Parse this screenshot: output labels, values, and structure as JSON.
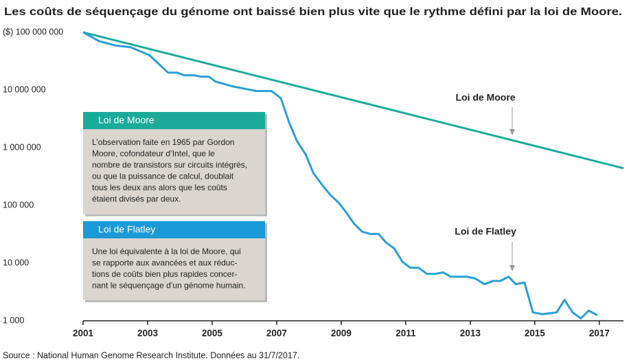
{
  "chart_data": {
    "type": "line",
    "title": "Les coûts de séquençage du génome ont baissé bien plus vite que le rythme défini par la loi de Moore.",
    "log_scale": true,
    "xlim": [
      2001,
      2017.75
    ],
    "xticks": [
      2001,
      2003,
      2005,
      2007,
      2009,
      2011,
      2013,
      2015,
      2017
    ],
    "ylim": [
      1000,
      100000000
    ],
    "yticks": [
      {
        "value": 1000,
        "label": "1 000"
      },
      {
        "value": 10000,
        "label": "10 000"
      },
      {
        "value": 100000,
        "label": "100 000"
      },
      {
        "value": 1000000,
        "label": "1 000 000"
      },
      {
        "value": 10000000,
        "label": "10 000 000"
      },
      {
        "value": 100000000,
        "label": "($) 100 000 000"
      }
    ],
    "series": [
      {
        "name": "Loi de Moore",
        "color": "#1aab9b",
        "x": [
          2001,
          2017.75
        ],
        "values": [
          100000000,
          440000
        ]
      },
      {
        "name": "Loi de Flatley",
        "color": "#2a9fd8",
        "x": [
          2001,
          2001.5,
          2002,
          2002.47,
          2003.06,
          2003.63,
          2003.9,
          2004.14,
          2004.45,
          2004.65,
          2004.9,
          2005.1,
          2005.65,
          2006.37,
          2006.84,
          2007.13,
          2007.4,
          2007.63,
          2007.9,
          2008.14,
          2008.4,
          2008.67,
          2008.93,
          2009.15,
          2009.4,
          2009.65,
          2009.9,
          2010.16,
          2010.38,
          2010.64,
          2010.9,
          2011.14,
          2011.4,
          2011.66,
          2011.92,
          2012.16,
          2012.4,
          2012.9,
          2013.16,
          2013.44,
          2013.7,
          2013.93,
          2014.19,
          2014.41,
          2014.68,
          2014.94,
          2015.23,
          2015.68,
          2015.92,
          2016.17,
          2016.43,
          2016.67,
          2016.94
        ],
        "values": [
          100000000,
          70000000,
          59000000,
          55000000,
          40000000,
          20000000,
          20000000,
          18000000,
          18000000,
          17000000,
          17000000,
          14000000,
          11500000,
          9600000,
          9600000,
          7200000,
          2600000,
          1300000,
          760000,
          360000,
          230000,
          150000,
          110000,
          76000,
          48000,
          35000,
          32000,
          32000,
          23000,
          18000,
          10500,
          8300,
          8300,
          6500,
          6500,
          6900,
          5800,
          5800,
          5400,
          4300,
          4900,
          4900,
          5800,
          4300,
          4600,
          1400,
          1300,
          1400,
          2300,
          1400,
          1100,
          1500,
          1250
        ]
      }
    ],
    "notes": [
      {
        "title": "Loi de Moore",
        "color": "#1aab9b",
        "lines": [
          "L’observation faite en 1965 par Gordon",
          "Moore, cofondateur d’Intel, que le",
          "nombre de transistors sur circuits intégrés,",
          "ou que la puissance de calcul, doublait",
          "tous les deux ans alors que les coûts",
          "étaient divisés par deux."
        ]
      },
      {
        "title": "Loi de Flatley",
        "color": "#1a9ad6",
        "lines": [
          "Une loi équivalente à la loi de Moore, qui",
          "se rapporte aux avancées et aux réduc-",
          "tions de coûts bien plus rapides concer-",
          "nant le séquençage d’un génome humain."
        ]
      }
    ],
    "source": "Source : National Human Genome Research Institute. Données au 31/7/2017."
  }
}
